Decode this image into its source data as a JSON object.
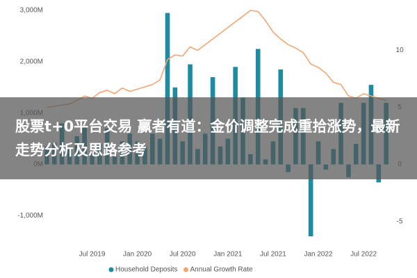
{
  "chart_data": {
    "type": "bar",
    "categories": [
      null,
      null,
      null,
      null,
      null,
      null,
      "Jul 2019",
      null,
      null,
      null,
      null,
      null,
      "Jan 2020",
      null,
      null,
      null,
      null,
      null,
      "Jul 2020",
      null,
      null,
      null,
      null,
      null,
      "Jan 2021",
      null,
      null,
      null,
      null,
      null,
      "Jul 2021",
      null,
      null,
      null,
      null,
      null,
      "Jan 2022",
      null,
      null,
      null,
      null,
      null,
      "Jul 2022",
      null,
      null,
      null
    ],
    "series": [
      {
        "name": "Household Deposits",
        "color": "#1f8ba3",
        "type": "bar",
        "values": [
          350,
          420,
          800,
          300,
          550,
          750,
          250,
          400,
          700,
          200,
          450,
          600,
          450,
          350,
          600,
          500,
          2950,
          1500,
          450,
          1950,
          300,
          600,
          1700,
          350,
          500,
          1900,
          1300,
          200,
          2250,
          100,
          450,
          1850,
          -150,
          1100,
          1100,
          -1400,
          450,
          -100,
          300,
          1200,
          -250,
          400,
          1200,
          1550,
          -350,
          1200
        ]
      },
      {
        "name": "Annual Growth Rate",
        "color": "#f4a571",
        "type": "line",
        "axis": "y2",
        "values": [
          5.0,
          5.1,
          5.2,
          5.3,
          5.6,
          6.0,
          5.8,
          6.3,
          6.5,
          6.2,
          6.7,
          6.4,
          6.6,
          6.8,
          7.0,
          7.4,
          9.2,
          9.6,
          9.5,
          10.3,
          10.0,
          10.5,
          11.0,
          11.5,
          12.0,
          12.5,
          13.0,
          13.5,
          13.4,
          12.6,
          11.6,
          11.0,
          10.5,
          10.2,
          9.8,
          8.8,
          8.5,
          8.0,
          7.2,
          7.0,
          6.0,
          5.8,
          6.2,
          6.0,
          5.8,
          5.6
        ]
      }
    ],
    "ylim": [
      -1400,
      3000
    ],
    "yticks": [
      {
        "value": -1000,
        "label": "-1,000M"
      },
      {
        "value": 0,
        "label": "0M"
      },
      {
        "value": 1000,
        "label": "1,000M"
      },
      {
        "value": 2000,
        "label": "2,000M"
      },
      {
        "value": 3000,
        "label": "3,000M"
      }
    ],
    "y2lim": [
      -6.3,
      13.5
    ],
    "y2ticks": [
      -5,
      0,
      5,
      10
    ],
    "grid": false,
    "legend": "bottom"
  },
  "banner": {
    "text": "股票t+0平台交易 赢者有道：金价调整完成重拾涨势，最新走势分析及思路参考"
  }
}
